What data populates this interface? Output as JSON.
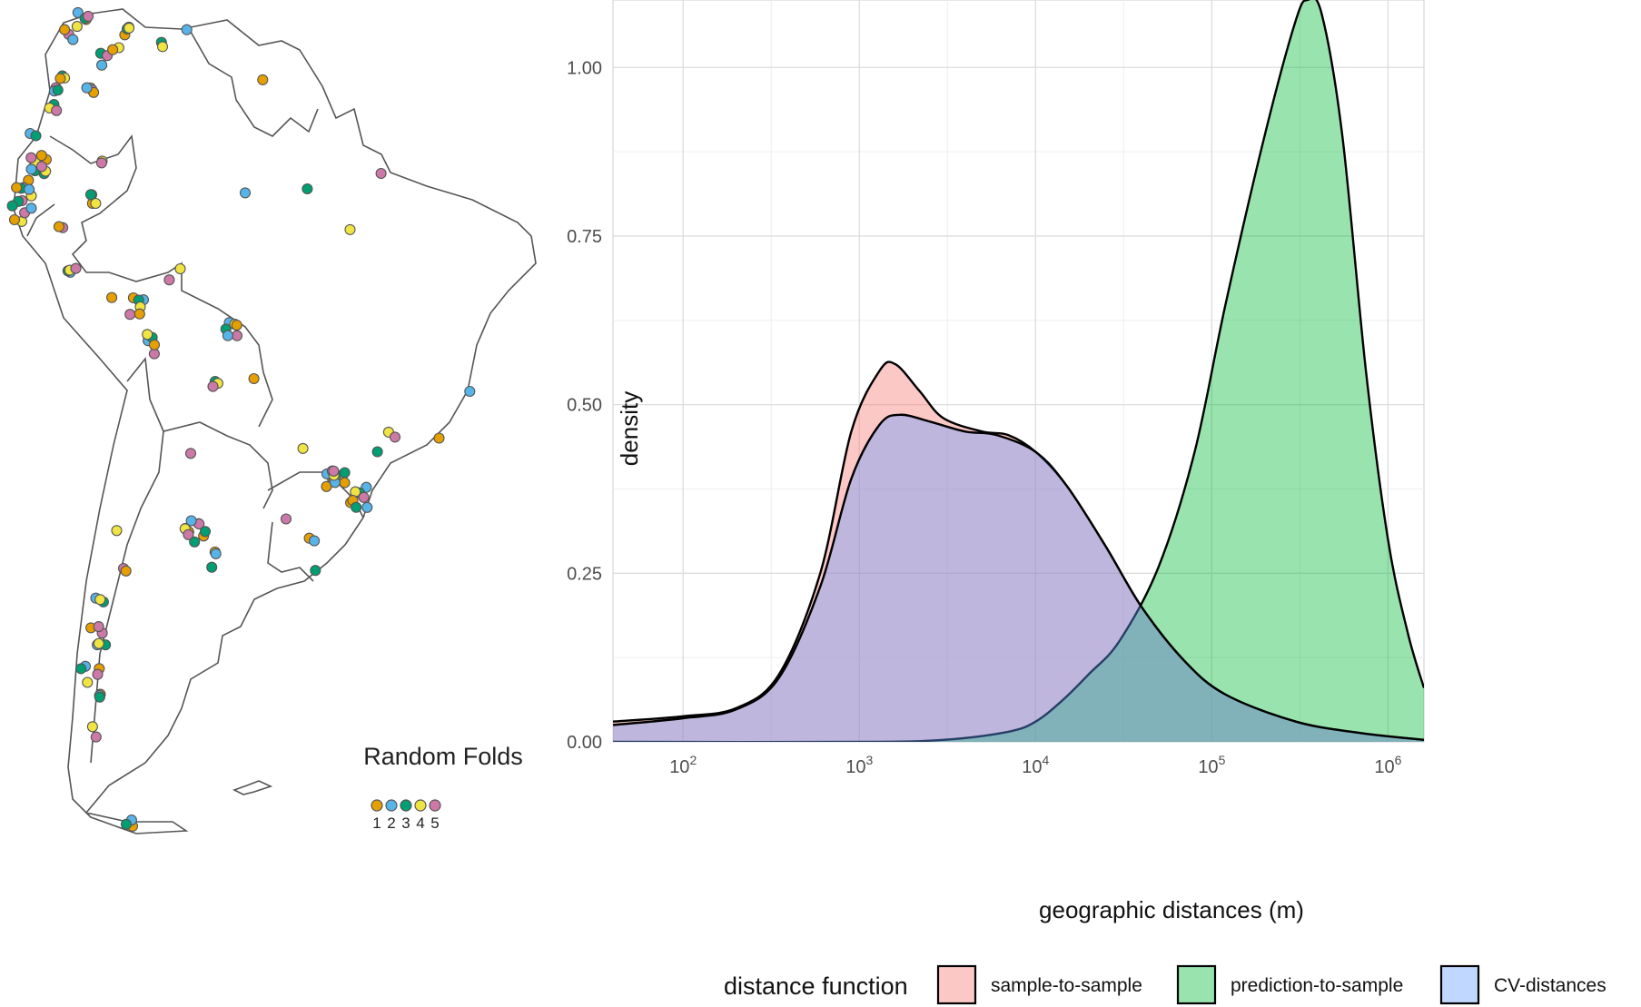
{
  "map_panel": {
    "legend_title": "Random Folds",
    "fold_labels": [
      "1",
      "2",
      "3",
      "4",
      "5"
    ],
    "fold_colors": [
      "#E69F00",
      "#56B4E9",
      "#009E73",
      "#F0E442",
      "#CC79A7"
    ]
  },
  "chart_data": {
    "type": "area",
    "xlabel": "geographic distances (m)",
    "ylabel": "density",
    "x_scale": "log10",
    "xlim": [
      40,
      1600000
    ],
    "ylim": [
      0,
      1.1
    ],
    "x_ticks": [
      {
        "value": 100,
        "base": "10",
        "exp": "2"
      },
      {
        "value": 1000,
        "base": "10",
        "exp": "3"
      },
      {
        "value": 10000,
        "base": "10",
        "exp": "4"
      },
      {
        "value": 100000,
        "base": "10",
        "exp": "5"
      },
      {
        "value": 1000000,
        "base": "10",
        "exp": "6"
      }
    ],
    "y_ticks": [
      "0.00",
      "0.25",
      "0.50",
      "0.75",
      "1.00"
    ],
    "y_tick_values": [
      0,
      0.25,
      0.5,
      0.75,
      1.0
    ],
    "grid": true,
    "legend_title": "distance function",
    "legend_position": "bottom",
    "series": [
      {
        "name": "sample-to-sample",
        "color": "#F8766D",
        "points": [
          [
            40,
            0.03
          ],
          [
            100,
            0.038
          ],
          [
            200,
            0.05
          ],
          [
            350,
            0.1
          ],
          [
            600,
            0.25
          ],
          [
            900,
            0.46
          ],
          [
            1300,
            0.55
          ],
          [
            1600,
            0.56
          ],
          [
            2200,
            0.52
          ],
          [
            3000,
            0.48
          ],
          [
            5000,
            0.46
          ],
          [
            7000,
            0.455
          ],
          [
            10000,
            0.43
          ],
          [
            15000,
            0.38
          ],
          [
            25000,
            0.29
          ],
          [
            40000,
            0.2
          ],
          [
            70000,
            0.12
          ],
          [
            120000,
            0.07
          ],
          [
            300000,
            0.03
          ],
          [
            700000,
            0.013
          ],
          [
            1600000,
            0.003
          ]
        ]
      },
      {
        "name": "prediction-to-sample",
        "color": "#00BA38",
        "points": [
          [
            40,
            0
          ],
          [
            1000,
            0
          ],
          [
            3000,
            0.003
          ],
          [
            7000,
            0.015
          ],
          [
            10000,
            0.03
          ],
          [
            14000,
            0.06
          ],
          [
            20000,
            0.1
          ],
          [
            30000,
            0.15
          ],
          [
            50000,
            0.26
          ],
          [
            80000,
            0.43
          ],
          [
            120000,
            0.65
          ],
          [
            200000,
            0.9
          ],
          [
            300000,
            1.07
          ],
          [
            350000,
            1.1
          ],
          [
            420000,
            1.08
          ],
          [
            550000,
            0.9
          ],
          [
            750000,
            0.55
          ],
          [
            1000000,
            0.3
          ],
          [
            1300000,
            0.16
          ],
          [
            1600000,
            0.08
          ]
        ]
      },
      {
        "name": "CV-distances",
        "color": "#619CFF",
        "points": [
          [
            40,
            0.025
          ],
          [
            100,
            0.035
          ],
          [
            200,
            0.048
          ],
          [
            350,
            0.095
          ],
          [
            600,
            0.23
          ],
          [
            900,
            0.39
          ],
          [
            1300,
            0.47
          ],
          [
            1700,
            0.485
          ],
          [
            2500,
            0.475
          ],
          [
            4000,
            0.46
          ],
          [
            6000,
            0.455
          ],
          [
            10000,
            0.43
          ],
          [
            15000,
            0.38
          ],
          [
            25000,
            0.29
          ],
          [
            40000,
            0.2
          ],
          [
            70000,
            0.12
          ],
          [
            120000,
            0.07
          ],
          [
            300000,
            0.03
          ],
          [
            700000,
            0.013
          ],
          [
            1600000,
            0.003
          ]
        ]
      }
    ]
  }
}
